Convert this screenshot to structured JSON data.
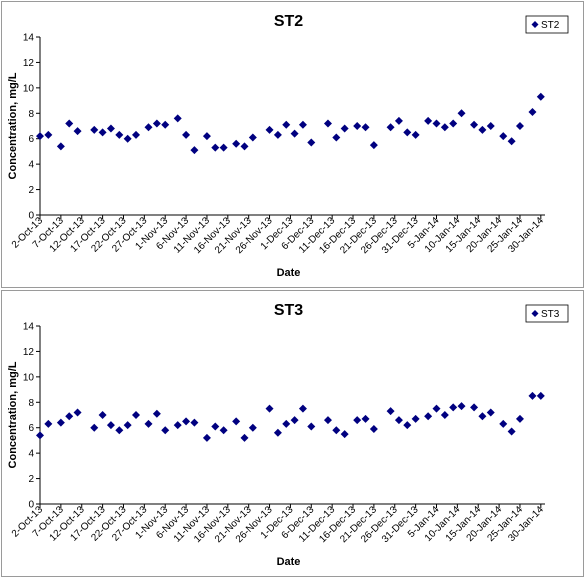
{
  "chart_data": [
    {
      "type": "scatter",
      "title": "ST2",
      "xlabel": "Date",
      "ylabel": "Concentration, mg/L",
      "ylim": [
        0,
        14
      ],
      "yticks": [
        "0",
        "2",
        "4",
        "6",
        "8",
        "10",
        "12",
        "14"
      ],
      "xlim": [
        "2-Oct-13",
        "31-Jan-14"
      ],
      "xticks": [
        "2-Oct-13",
        "7-Oct-13",
        "12-Oct-13",
        "17-Oct-13",
        "22-Oct-13",
        "27-Oct-13",
        "1-Nov-13",
        "6-Nov-13",
        "11-Nov-13",
        "16-Nov-13",
        "21-Nov-13",
        "26-Nov-13",
        "1-Dec-13",
        "6-Dec-13",
        "11-Dec-13",
        "16-Dec-13",
        "21-Dec-13",
        "26-Dec-13",
        "31-Dec-13",
        "5-Jan-14",
        "10-Jan-14",
        "15-Jan-14",
        "20-Jan-14",
        "25-Jan-14",
        "30-Jan-14"
      ],
      "grid": false,
      "legend": "top-right",
      "marker_color": "#000080",
      "series": [
        {
          "name": "ST2",
          "points": [
            [
              "2-Oct-13",
              6.2
            ],
            [
              "4-Oct-13",
              6.3
            ],
            [
              "7-Oct-13",
              5.4
            ],
            [
              "9-Oct-13",
              7.2
            ],
            [
              "11-Oct-13",
              6.6
            ],
            [
              "15-Oct-13",
              6.7
            ],
            [
              "17-Oct-13",
              6.5
            ],
            [
              "19-Oct-13",
              6.8
            ],
            [
              "21-Oct-13",
              6.3
            ],
            [
              "23-Oct-13",
              6.0
            ],
            [
              "25-Oct-13",
              6.3
            ],
            [
              "28-Oct-13",
              6.9
            ],
            [
              "30-Oct-13",
              7.2
            ],
            [
              "1-Nov-13",
              7.1
            ],
            [
              "4-Nov-13",
              7.6
            ],
            [
              "6-Nov-13",
              6.3
            ],
            [
              "8-Nov-13",
              5.1
            ],
            [
              "11-Nov-13",
              6.2
            ],
            [
              "13-Nov-13",
              5.3
            ],
            [
              "15-Nov-13",
              5.3
            ],
            [
              "18-Nov-13",
              5.6
            ],
            [
              "20-Nov-13",
              5.4
            ],
            [
              "22-Nov-13",
              6.1
            ],
            [
              "26-Nov-13",
              6.7
            ],
            [
              "28-Nov-13",
              6.3
            ],
            [
              "30-Nov-13",
              7.1
            ],
            [
              "2-Dec-13",
              6.4
            ],
            [
              "4-Dec-13",
              7.1
            ],
            [
              "6-Dec-13",
              5.7
            ],
            [
              "10-Dec-13",
              7.2
            ],
            [
              "12-Dec-13",
              6.1
            ],
            [
              "14-Dec-13",
              6.8
            ],
            [
              "17-Dec-13",
              7.0
            ],
            [
              "19-Dec-13",
              6.9
            ],
            [
              "21-Dec-13",
              5.5
            ],
            [
              "25-Dec-13",
              6.9
            ],
            [
              "27-Dec-13",
              7.4
            ],
            [
              "29-Dec-13",
              6.5
            ],
            [
              "31-Dec-13",
              6.3
            ],
            [
              "3-Jan-14",
              7.4
            ],
            [
              "5-Jan-14",
              7.2
            ],
            [
              "7-Jan-14",
              6.9
            ],
            [
              "9-Jan-14",
              7.2
            ],
            [
              "11-Jan-14",
              8.0
            ],
            [
              "14-Jan-14",
              7.1
            ],
            [
              "16-Jan-14",
              6.7
            ],
            [
              "18-Jan-14",
              7.0
            ],
            [
              "21-Jan-14",
              6.2
            ],
            [
              "23-Jan-14",
              5.8
            ],
            [
              "25-Jan-14",
              7.0
            ],
            [
              "28-Jan-14",
              8.1
            ],
            [
              "30-Jan-14",
              9.3
            ]
          ]
        }
      ]
    },
    {
      "type": "scatter",
      "title": "ST3",
      "xlabel": "Date",
      "ylabel": "Concentration, mg/L",
      "ylim": [
        0,
        14
      ],
      "yticks": [
        "0",
        "2",
        "4",
        "6",
        "8",
        "10",
        "12",
        "14"
      ],
      "xlim": [
        "2-Oct-13",
        "31-Jan-14"
      ],
      "xticks": [
        "2-Oct-13",
        "7-Oct-13",
        "12-Oct-13",
        "17-Oct-13",
        "22-Oct-13",
        "27-Oct-13",
        "1-Nov-13",
        "6-Nov-13",
        "11-Nov-13",
        "16-Nov-13",
        "21-Nov-13",
        "26-Nov-13",
        "1-Dec-13",
        "6-Dec-13",
        "11-Dec-13",
        "16-Dec-13",
        "21-Dec-13",
        "26-Dec-13",
        "31-Dec-13",
        "5-Jan-14",
        "10-Jan-14",
        "15-Jan-14",
        "20-Jan-14",
        "25-Jan-14",
        "30-Jan-14"
      ],
      "grid": false,
      "legend": "top-right",
      "marker_color": "#000080",
      "series": [
        {
          "name": "ST3",
          "points": [
            [
              "2-Oct-13",
              5.4
            ],
            [
              "4-Oct-13",
              6.3
            ],
            [
              "7-Oct-13",
              6.4
            ],
            [
              "9-Oct-13",
              6.9
            ],
            [
              "11-Oct-13",
              7.2
            ],
            [
              "15-Oct-13",
              6.0
            ],
            [
              "17-Oct-13",
              7.0
            ],
            [
              "19-Oct-13",
              6.2
            ],
            [
              "21-Oct-13",
              5.8
            ],
            [
              "23-Oct-13",
              6.2
            ],
            [
              "25-Oct-13",
              7.0
            ],
            [
              "28-Oct-13",
              6.3
            ],
            [
              "30-Oct-13",
              7.1
            ],
            [
              "1-Nov-13",
              5.8
            ],
            [
              "4-Nov-13",
              6.2
            ],
            [
              "6-Nov-13",
              6.5
            ],
            [
              "8-Nov-13",
              6.4
            ],
            [
              "11-Nov-13",
              5.2
            ],
            [
              "13-Nov-13",
              6.1
            ],
            [
              "15-Nov-13",
              5.8
            ],
            [
              "18-Nov-13",
              6.5
            ],
            [
              "20-Nov-13",
              5.2
            ],
            [
              "22-Nov-13",
              6.0
            ],
            [
              "26-Nov-13",
              7.5
            ],
            [
              "28-Nov-13",
              5.6
            ],
            [
              "30-Nov-13",
              6.3
            ],
            [
              "2-Dec-13",
              6.6
            ],
            [
              "4-Dec-13",
              7.5
            ],
            [
              "6-Dec-13",
              6.1
            ],
            [
              "10-Dec-13",
              6.6
            ],
            [
              "12-Dec-13",
              5.8
            ],
            [
              "14-Dec-13",
              5.5
            ],
            [
              "17-Dec-13",
              6.6
            ],
            [
              "19-Dec-13",
              6.7
            ],
            [
              "21-Dec-13",
              5.9
            ],
            [
              "25-Dec-13",
              7.3
            ],
            [
              "27-Dec-13",
              6.6
            ],
            [
              "29-Dec-13",
              6.2
            ],
            [
              "31-Dec-13",
              6.7
            ],
            [
              "3-Jan-14",
              6.9
            ],
            [
              "5-Jan-14",
              7.5
            ],
            [
              "7-Jan-14",
              7.0
            ],
            [
              "9-Jan-14",
              7.6
            ],
            [
              "11-Jan-14",
              7.7
            ],
            [
              "14-Jan-14",
              7.6
            ],
            [
              "16-Jan-14",
              6.9
            ],
            [
              "18-Jan-14",
              7.2
            ],
            [
              "21-Jan-14",
              6.3
            ],
            [
              "23-Jan-14",
              5.7
            ],
            [
              "25-Jan-14",
              6.7
            ],
            [
              "28-Jan-14",
              8.5
            ],
            [
              "30-Jan-14",
              8.5
            ]
          ]
        }
      ]
    }
  ]
}
